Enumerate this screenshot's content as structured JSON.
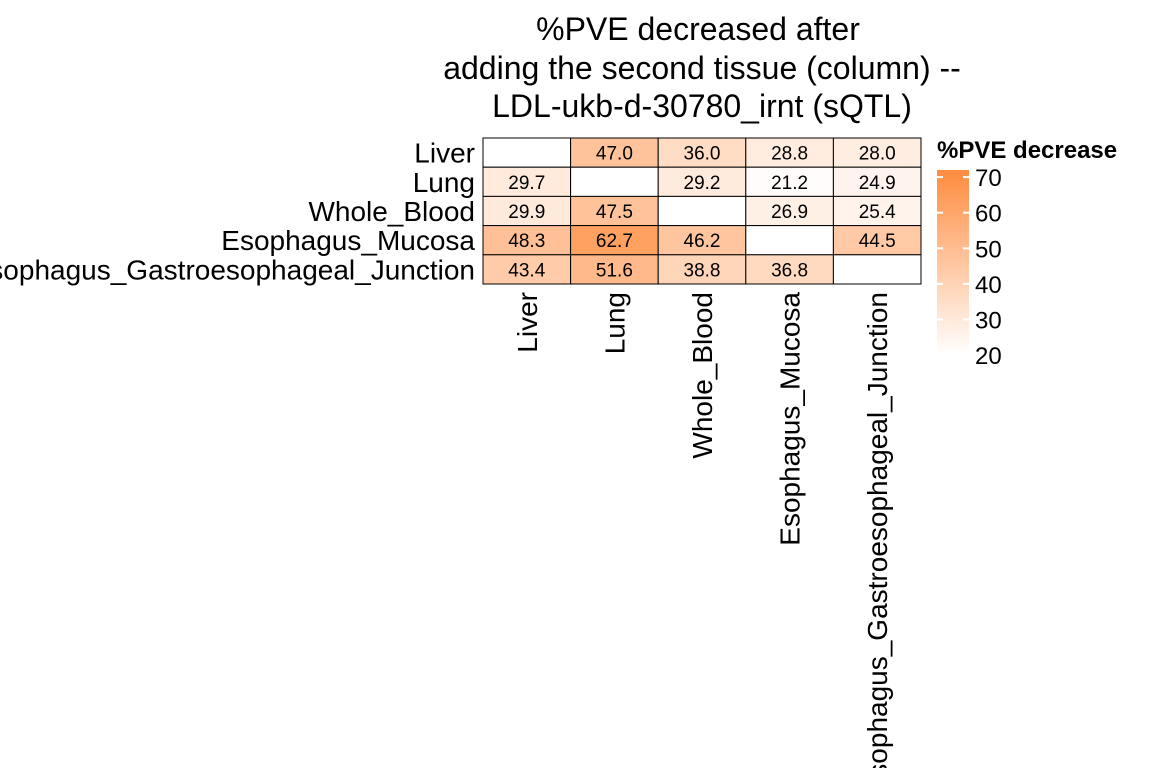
{
  "chart_data": {
    "type": "heatmap",
    "title_lines": [
      "%PVE decreased after",
      "adding the second tissue (column) --",
      "LDL-ukb-d-30780_irnt (sQTL)"
    ],
    "rows": [
      "Liver",
      "Lung",
      "Whole_Blood",
      "Esophagus_Mucosa",
      "Esophagus_Gastroesophageal_Junction"
    ],
    "columns": [
      "Liver",
      "Lung",
      "Whole_Blood",
      "Esophagus_Mucosa",
      "Esophagus_Gastroesophageal_Junction"
    ],
    "values": [
      [
        null,
        47.0,
        36.0,
        28.8,
        28.0
      ],
      [
        29.7,
        null,
        29.2,
        21.2,
        24.9
      ],
      [
        29.9,
        47.5,
        null,
        26.9,
        25.4
      ],
      [
        48.3,
        62.7,
        46.2,
        null,
        44.5
      ],
      [
        43.4,
        51.6,
        38.8,
        36.8,
        null
      ]
    ],
    "cell_labels": [
      [
        "",
        "47.0",
        "36.0",
        "28.8",
        "28.0"
      ],
      [
        "29.7",
        "",
        "29.2",
        "21.2",
        "24.9"
      ],
      [
        "29.9",
        "47.5",
        "",
        "26.9",
        "25.4"
      ],
      [
        "48.3",
        "62.7",
        "46.2",
        "",
        "44.5"
      ],
      [
        "43.4",
        "51.6",
        "38.8",
        "36.8",
        ""
      ]
    ],
    "color_scale": {
      "low_color": "#ffffff",
      "high_color": "#ff8c3f",
      "range": [
        20,
        72
      ]
    },
    "legend": {
      "title": "%PVE decrease",
      "ticks": [
        70,
        60,
        50,
        40,
        30,
        20
      ],
      "tick_labels": [
        "70",
        "60",
        "50",
        "40",
        "30",
        "20"
      ],
      "placement": "right"
    }
  }
}
